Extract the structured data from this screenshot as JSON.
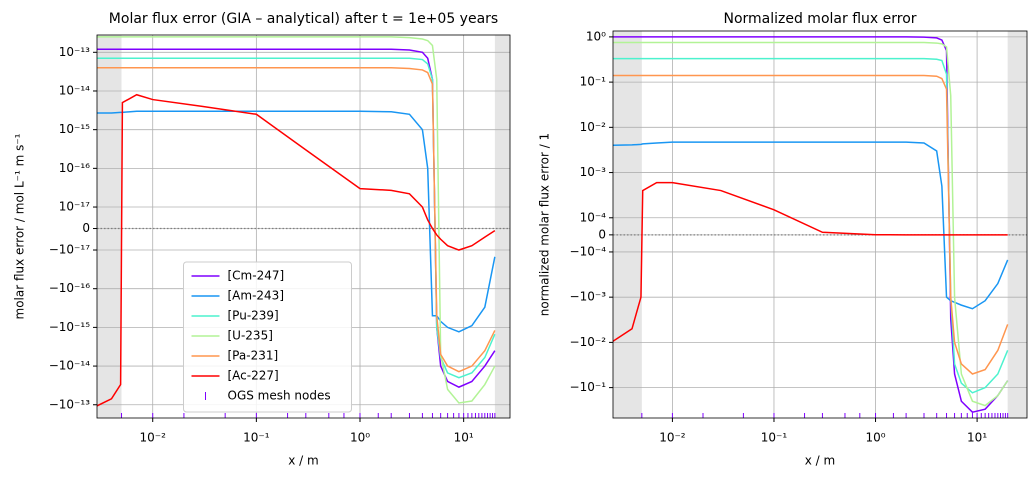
{
  "chart_data": [
    {
      "type": "line",
      "title": "Molar flux error (GIA – analytical) after t = 1e+05 years",
      "xlabel": "x / m",
      "ylabel": "molar flux error / mol L⁻¹ m s⁻¹",
      "xscale": "log",
      "yscale": "symlog",
      "linthresh": 1e-17,
      "linscale": 0.5,
      "xlim": [
        0.0029,
        28
      ],
      "ylim": [
        -2.2e-13,
        2.8e-13
      ],
      "xticks": [
        {
          "value": 0.01,
          "label": "10⁻²"
        },
        {
          "value": 0.1,
          "label": "10⁻¹"
        },
        {
          "value": 1,
          "label": "10⁰"
        },
        {
          "value": 10,
          "label": "10¹"
        }
      ],
      "yticks": [
        {
          "value": 1e-13,
          "label": "10⁻¹³"
        },
        {
          "value": 1e-14,
          "label": "10⁻¹⁴"
        },
        {
          "value": 1e-15,
          "label": "10⁻¹⁵"
        },
        {
          "value": 1e-16,
          "label": "10⁻¹⁶"
        },
        {
          "value": 1e-17,
          "label": "10⁻¹⁷"
        },
        0,
        {
          "value": -1e-17,
          "label": "−10⁻¹⁷"
        },
        {
          "value": -1e-16,
          "label": "−10⁻¹⁶"
        },
        {
          "value": -1e-15,
          "label": "−10⁻¹⁵"
        },
        {
          "value": -1e-14,
          "label": "−10⁻¹⁴"
        },
        {
          "value": -1e-13,
          "label": "−10⁻¹³"
        }
      ],
      "grid": true,
      "zero_line": true,
      "legend": "lower center",
      "shaded_x": [
        [
          0.0029,
          0.005
        ],
        [
          20,
          28
        ]
      ],
      "x": [
        0.0025,
        0.004,
        0.0049,
        0.0051,
        0.007,
        0.01,
        0.03,
        0.1,
        0.3,
        1,
        2,
        3,
        4,
        4.5,
        5,
        5.5,
        6,
        7,
        9,
        12,
        16,
        20
      ],
      "series": [
        {
          "name": "[Cm-247]",
          "color": "#7f00ff",
          "values": [
            1.2e-13,
            1.2e-13,
            1.2e-13,
            1.2e-13,
            1.2e-13,
            1.2e-13,
            1.2e-13,
            1.2e-13,
            1.2e-13,
            1.2e-13,
            1.2e-13,
            1.15e-13,
            1e-13,
            7e-14,
            2e-14,
            -1e-15,
            -1e-14,
            -2.5e-14,
            -3.5e-14,
            -2.5e-14,
            -1e-14,
            -4e-15
          ]
        },
        {
          "name": "[Am-243]",
          "color": "#1996f3",
          "values": [
            2.7e-15,
            2.7e-15,
            2.8e-15,
            2.8e-15,
            3e-15,
            3e-15,
            3e-15,
            3e-15,
            3e-15,
            3e-15,
            2.9e-15,
            2.5e-15,
            1e-15,
            1e-16,
            -5e-16,
            -5e-16,
            -7e-16,
            -1e-15,
            -1.3e-15,
            -9e-16,
            -3e-16,
            -1.5e-17
          ]
        },
        {
          "name": "[Pu-239]",
          "color": "#4cf2ce",
          "values": [
            7e-14,
            7e-14,
            7e-14,
            7e-14,
            7e-14,
            7e-14,
            7e-14,
            7e-14,
            7e-14,
            7e-14,
            7e-14,
            7e-14,
            6.5e-14,
            5e-14,
            2e-14,
            -1e-15,
            -6e-15,
            -1.5e-14,
            -2e-14,
            -1.5e-14,
            -6e-15,
            -1.5e-15
          ]
        },
        {
          "name": "[U-235]",
          "color": "#b2f396",
          "values": [
            2.5e-13,
            2.5e-13,
            2.5e-13,
            2.5e-13,
            2.5e-13,
            2.5e-13,
            2.5e-13,
            2.5e-13,
            2.5e-13,
            2.5e-13,
            2.5e-13,
            2.4e-13,
            2.2e-13,
            2e-13,
            1.5e-13,
            2e-14,
            -5e-15,
            -4e-14,
            -9e-14,
            -8e-14,
            -3e-14,
            -1e-14
          ]
        },
        {
          "name": "[Pa-231]",
          "color": "#ff964f",
          "values": [
            4e-14,
            4e-14,
            4e-14,
            4e-14,
            4e-14,
            4e-14,
            4e-14,
            4e-14,
            4e-14,
            4e-14,
            4e-14,
            3.8e-14,
            3.5e-14,
            3e-14,
            1.5e-14,
            -5e-16,
            -5e-15,
            -1e-14,
            -1.4e-14,
            -1e-14,
            -4e-15,
            -1.2e-15
          ]
        },
        {
          "name": "[Ac-227]",
          "color": "#ff0000",
          "values": [
            -1.3e-13,
            -7e-14,
            -3e-14,
            5e-15,
            8e-15,
            6e-15,
            4e-15,
            2.5e-15,
            3e-16,
            3e-17,
            2.7e-17,
            2.2e-17,
            1e-17,
            4e-18,
            0,
            -3e-18,
            -5e-18,
            -8e-18,
            -1e-17,
            -8e-18,
            -4e-18,
            -1e-18
          ]
        }
      ],
      "mesh_nodes": {
        "name": "OGS mesh nodes",
        "color": "#7f00ff",
        "x": [
          0.005,
          0.01,
          0.02,
          0.05,
          0.1,
          0.2,
          0.3,
          0.5,
          0.7,
          1,
          1.5,
          2,
          3,
          4,
          5,
          6,
          7,
          8,
          9,
          10,
          11,
          12,
          13,
          14,
          15,
          16,
          17,
          18,
          19,
          20
        ]
      }
    },
    {
      "type": "line",
      "title": "Normalized molar flux error",
      "xlabel": "x / m",
      "ylabel": "normalized molar flux error / 1",
      "xscale": "log",
      "yscale": "symlog",
      "linthresh": 0.0001,
      "linscale": 0.34,
      "xlim": [
        0.0026,
        31
      ],
      "ylim": [
        -0.47,
        1.35
      ],
      "xticks": [
        {
          "value": 0.01,
          "label": "10⁻²"
        },
        {
          "value": 0.1,
          "label": "10⁻¹"
        },
        {
          "value": 1,
          "label": "10⁰"
        },
        {
          "value": 10,
          "label": "10¹"
        }
      ],
      "yticks": [
        {
          "value": 1,
          "label": "10⁰"
        },
        {
          "value": 0.1,
          "label": "10⁻¹"
        },
        {
          "value": 0.01,
          "label": "10⁻²"
        },
        {
          "value": 0.001,
          "label": "10⁻³"
        },
        {
          "value": 0.0001,
          "label": "10⁻⁴"
        },
        0,
        {
          "value": -0.0001,
          "label": "−10⁻⁴"
        },
        {
          "value": -0.001,
          "label": "−10⁻³"
        },
        {
          "value": -0.01,
          "label": "−10⁻²"
        },
        {
          "value": -0.1,
          "label": "−10⁻¹"
        }
      ],
      "grid": true,
      "zero_line": true,
      "shaded_x": [
        [
          0.0026,
          0.005
        ],
        [
          20,
          31
        ]
      ],
      "x": [
        0.0025,
        0.004,
        0.0049,
        0.0051,
        0.007,
        0.01,
        0.03,
        0.1,
        0.3,
        1,
        2,
        3,
        4,
        4.5,
        5,
        5.5,
        6,
        7,
        9,
        12,
        16,
        20
      ],
      "series": [
        {
          "name": "[Cm-247]",
          "color": "#7f00ff",
          "values": [
            1,
            1,
            1,
            1,
            1,
            1,
            1,
            1,
            1,
            1,
            1,
            0.99,
            0.95,
            0.85,
            0.5,
            -0.003,
            -0.05,
            -0.2,
            -0.35,
            -0.3,
            -0.15,
            -0.07
          ]
        },
        {
          "name": "[Am-243]",
          "color": "#1996f3",
          "values": [
            0.004,
            0.0041,
            0.0042,
            0.0043,
            0.0045,
            0.0047,
            0.0047,
            0.0047,
            0.0047,
            0.0047,
            0.0047,
            0.0045,
            0.003,
            0.0005,
            -0.001,
            -0.0012,
            -0.0013,
            -0.0015,
            -0.0018,
            -0.0012,
            -0.0005,
            -0.00015
          ]
        },
        {
          "name": "[Pu-239]",
          "color": "#4cf2ce",
          "values": [
            0.33,
            0.33,
            0.33,
            0.33,
            0.33,
            0.33,
            0.33,
            0.33,
            0.33,
            0.33,
            0.33,
            0.33,
            0.32,
            0.3,
            0.15,
            -0.001,
            -0.03,
            -0.08,
            -0.13,
            -0.1,
            -0.05,
            -0.015
          ]
        },
        {
          "name": "[U-235]",
          "color": "#b2f396",
          "values": [
            0.75,
            0.75,
            0.75,
            0.75,
            0.75,
            0.75,
            0.75,
            0.75,
            0.75,
            0.75,
            0.75,
            0.75,
            0.73,
            0.7,
            0.6,
            0.05,
            -0.001,
            -0.05,
            -0.2,
            -0.25,
            -0.15,
            -0.07
          ]
        },
        {
          "name": "[Pa-231]",
          "color": "#ff964f",
          "values": [
            0.14,
            0.14,
            0.14,
            0.14,
            0.14,
            0.14,
            0.14,
            0.14,
            0.14,
            0.14,
            0.14,
            0.14,
            0.135,
            0.12,
            0.07,
            -0.001,
            -0.01,
            -0.03,
            -0.05,
            -0.04,
            -0.015,
            -0.004
          ]
        },
        {
          "name": "[Ac-227]",
          "color": "#ff0000",
          "values": [
            -0.01,
            -0.005,
            -0.001,
            0.0004,
            0.0006,
            0.0006,
            0.0004,
            0.00015,
            1.5e-05,
            1e-06,
            0,
            0,
            0,
            0,
            0,
            0,
            0,
            0,
            0,
            0,
            0,
            0
          ]
        }
      ],
      "mesh_nodes": {
        "name": "OGS mesh nodes",
        "color": "#7f00ff",
        "x": [
          0.005,
          0.01,
          0.02,
          0.05,
          0.1,
          0.2,
          0.3,
          0.5,
          0.7,
          1,
          1.5,
          2,
          3,
          4,
          5,
          6,
          7,
          8,
          9,
          10,
          11,
          12,
          13,
          14,
          15,
          16,
          17,
          18,
          19,
          20
        ]
      }
    }
  ]
}
